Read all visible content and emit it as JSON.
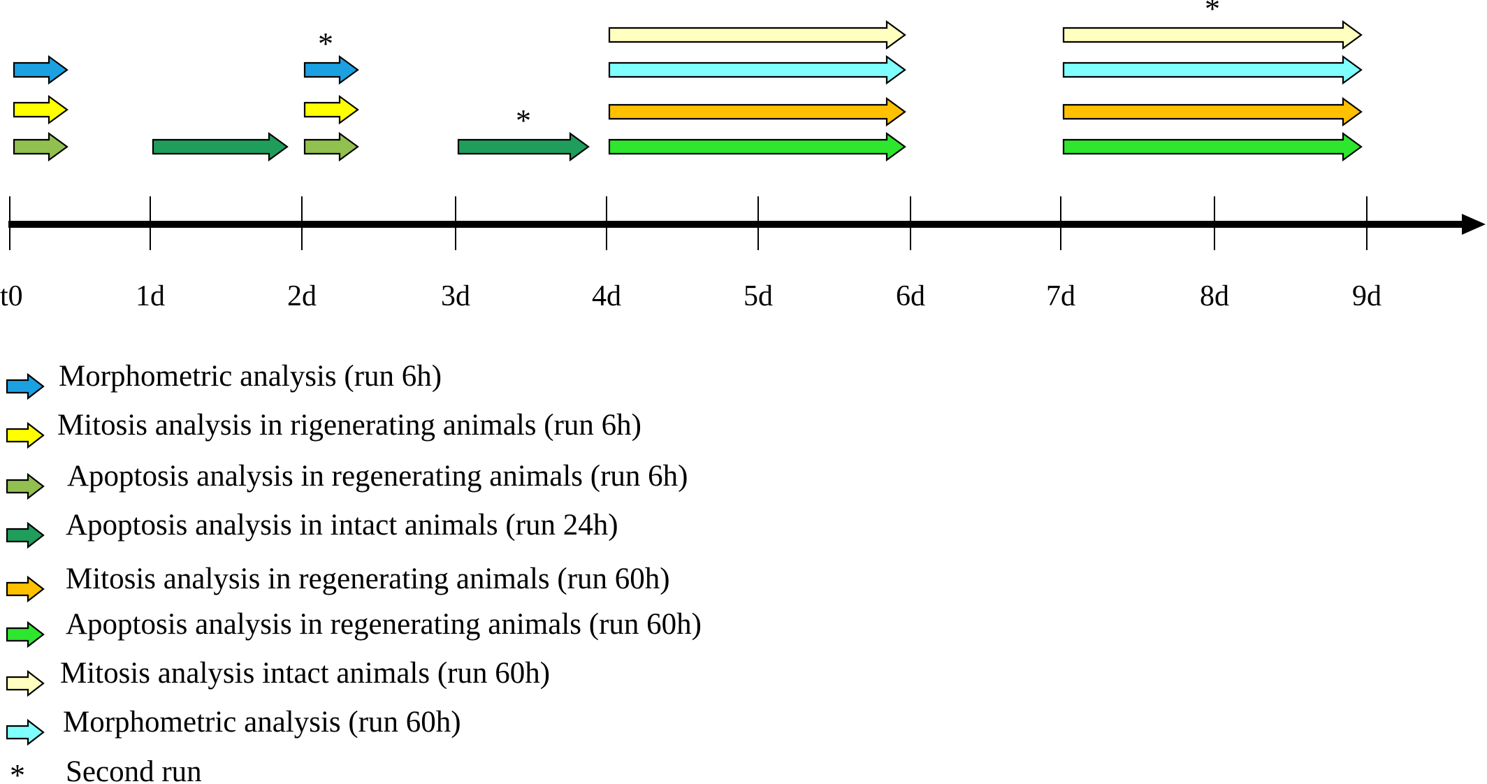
{
  "colors": {
    "blue": "#1BA1E2",
    "yellow": "#FFFF00",
    "olive_green": "#92C050",
    "dark_green": "#1F9D5B",
    "orange": "#FFC000",
    "bright_green": "#2EE62E",
    "cream": "#FFFFC0",
    "light_cyan": "#80FFFF",
    "axis": "#000000"
  },
  "timeline": {
    "ticks": [
      "t0",
      "1d",
      "2d",
      "3d",
      "4d",
      "5d",
      "6d",
      "7d",
      "8d",
      "9d"
    ]
  },
  "runs": [
    {
      "type": "morphometric_6h",
      "from": "t0",
      "to": "t0+6h",
      "second_run": false
    },
    {
      "type": "mitosis_regen_6h",
      "from": "t0",
      "to": "t0+6h",
      "second_run": false
    },
    {
      "type": "apoptosis_regen_6h",
      "from": "t0",
      "to": "t0+6h",
      "second_run": false
    },
    {
      "type": "apoptosis_intact_24h",
      "from": "1d",
      "to": "2d",
      "second_run": false
    },
    {
      "type": "morphometric_6h",
      "from": "2d",
      "to": "2d+6h",
      "second_run": true
    },
    {
      "type": "mitosis_regen_6h",
      "from": "2d",
      "to": "2d+6h",
      "second_run": false
    },
    {
      "type": "apoptosis_regen_6h",
      "from": "2d",
      "to": "2d+6h",
      "second_run": false
    },
    {
      "type": "apoptosis_intact_24h",
      "from": "3d",
      "to": "4d",
      "second_run": true
    },
    {
      "type": "mitosis_intact_60h",
      "from": "4d",
      "to": "6d",
      "second_run": false
    },
    {
      "type": "morphometric_60h",
      "from": "4d",
      "to": "6d",
      "second_run": false
    },
    {
      "type": "mitosis_regen_60h",
      "from": "4d",
      "to": "6d",
      "second_run": false
    },
    {
      "type": "apoptosis_regen_60h",
      "from": "4d",
      "to": "6d",
      "second_run": false
    },
    {
      "type": "mitosis_intact_60h",
      "from": "7d",
      "to": "9d",
      "second_run": true
    },
    {
      "type": "morphometric_60h",
      "from": "7d",
      "to": "9d",
      "second_run": false
    },
    {
      "type": "mitosis_regen_60h",
      "from": "7d",
      "to": "9d",
      "second_run": false
    },
    {
      "type": "apoptosis_regen_60h",
      "from": "7d",
      "to": "9d",
      "second_run": false
    }
  ],
  "second_run_marker": "*",
  "legend": [
    {
      "key": "morphometric_6h",
      "color": "#1BA1E2",
      "label": "Morphometric analysis (run 6h)"
    },
    {
      "key": "mitosis_regen_6h",
      "color": "#FFFF00",
      "label": "Mitosis analysis in rigenerating animals (run 6h)"
    },
    {
      "key": "apoptosis_regen_6h",
      "color": "#92C050",
      "label": "Apoptosis analysis in regenerating animals (run 6h)"
    },
    {
      "key": "apoptosis_intact_24h",
      "color": "#1F9D5B",
      "label": "Apoptosis analysis in intact animals (run 24h)"
    },
    {
      "key": "mitosis_regen_60h",
      "color": "#FFC000",
      "label": "Mitosis analysis in regenerating animals (run 60h)"
    },
    {
      "key": "apoptosis_regen_60h",
      "color": "#2EE62E",
      "label": "Apoptosis analysis in regenerating animals (run 60h)"
    },
    {
      "key": "mitosis_intact_60h",
      "color": "#FFFFC0",
      "label": "Mitosis analysis intact animals (run 60h)"
    },
    {
      "key": "morphometric_60h",
      "color": "#80FFFF",
      "label": "Morphometric analysis (run 60h)"
    }
  ],
  "legend_marker": {
    "symbol": "*",
    "label": "Second run"
  }
}
